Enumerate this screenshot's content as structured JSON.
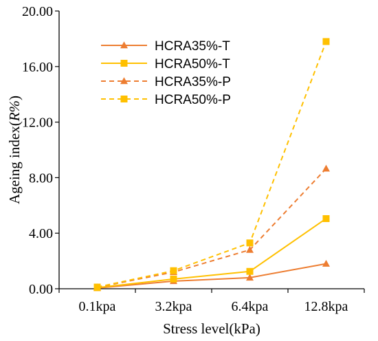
{
  "chart_data": {
    "type": "line",
    "xlabel": "Stress level(kPa)",
    "ylabel": {
      "prefix": "Ageing index(",
      "italic": "R%",
      "suffix": ")"
    },
    "categories": [
      "0.1kpa",
      "3.2kpa",
      "6.4kpa",
      "12.8kpa"
    ],
    "ylim": [
      0,
      20
    ],
    "yticks": [
      "0.00",
      "4.00",
      "8.00",
      "12.00",
      "16.00",
      "20.00"
    ],
    "grid": false,
    "legend_position": "top-left",
    "series": [
      {
        "name": "HCRA35%-T",
        "values": [
          0.05,
          0.55,
          0.8,
          1.8
        ],
        "color": "#ED7D31",
        "marker": "triangle",
        "dash": false
      },
      {
        "name": "HCRA50%-T",
        "values": [
          0.08,
          0.7,
          1.25,
          5.05
        ],
        "color": "#FFC000",
        "marker": "square",
        "dash": false
      },
      {
        "name": "HCRA35%-P",
        "values": [
          0.1,
          1.2,
          2.8,
          8.65
        ],
        "color": "#ED7D31",
        "marker": "triangle",
        "dash": true
      },
      {
        "name": "HCRA50%-P",
        "values": [
          0.12,
          1.3,
          3.3,
          17.8
        ],
        "color": "#FFC000",
        "marker": "square",
        "dash": true
      }
    ]
  }
}
